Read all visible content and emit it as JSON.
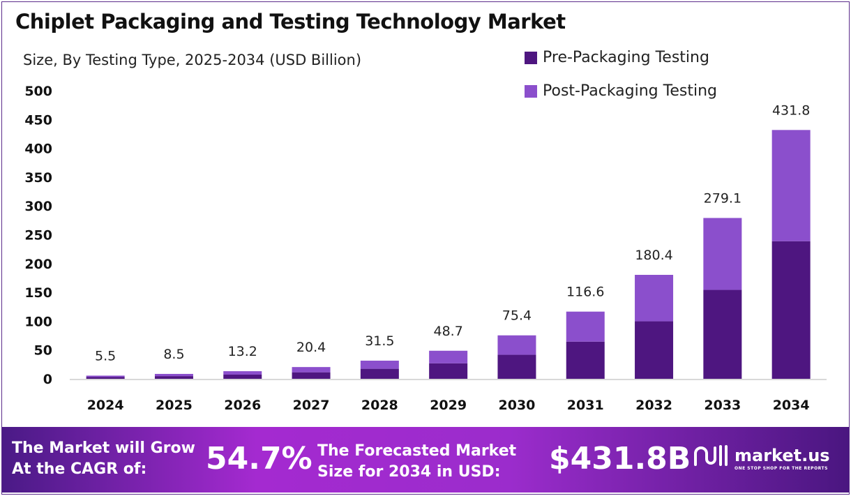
{
  "chart_data": {
    "type": "bar",
    "stacked": true,
    "title": "Chiplet Packaging and Testing Technology Market",
    "subtitle": "Size, By Testing Type, 2025-2034 (USD Billion)",
    "categories": [
      "2024",
      "2025",
      "2026",
      "2027",
      "2028",
      "2029",
      "2030",
      "2031",
      "2032",
      "2033",
      "2034"
    ],
    "series": [
      {
        "name": "Pre-Packaging Testing",
        "color": "#4e1680",
        "values": [
          3.0,
          4.7,
          7.3,
          11.3,
          17.4,
          26.9,
          41.7,
          64.5,
          99.8,
          154.3,
          238.8
        ]
      },
      {
        "name": "Post-Packaging Testing",
        "color": "#8b4fcc",
        "values": [
          2.5,
          3.8,
          5.9,
          9.1,
          14.1,
          21.8,
          33.7,
          52.1,
          80.6,
          124.8,
          193.0
        ]
      }
    ],
    "totals": [
      "5.5",
      "8.5",
      "13.2",
      "20.4",
      "31.5",
      "48.7",
      "75.4",
      "116.6",
      "180.4",
      "279.1",
      "431.8"
    ],
    "yticks": [
      "0",
      "50",
      "100",
      "150",
      "200",
      "250",
      "300",
      "350",
      "400",
      "450",
      "500"
    ],
    "ylim": [
      0,
      500
    ],
    "legend_position": "top-right",
    "grid": false
  },
  "banner": {
    "cagr_label_1": "The Market will Grow",
    "cagr_label_2": "At the CAGR of:",
    "cagr_value": "54.7%",
    "forecast_label_1": "The Forecasted Market",
    "forecast_label_2": "Size for 2034 in USD:",
    "forecast_value": "$431.8B",
    "logo_text": "market.us",
    "logo_tagline": "ONE STOP SHOP FOR THE REPORTS"
  }
}
